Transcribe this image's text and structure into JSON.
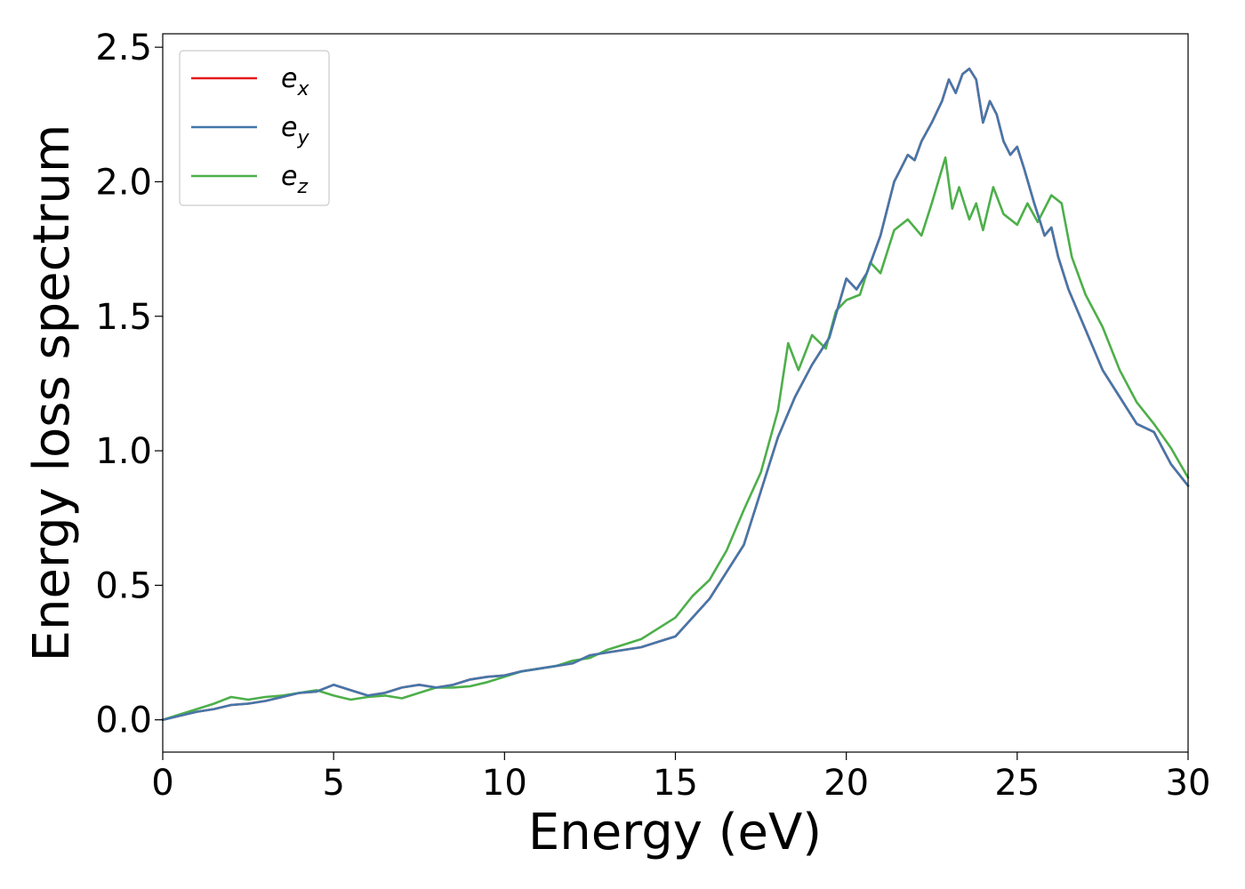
{
  "chart_data": {
    "type": "line",
    "title": "",
    "xlabel": "Energy (eV)",
    "ylabel": "Energy loss spectrum",
    "xlim": [
      0,
      30
    ],
    "ylim": [
      -0.12,
      2.55
    ],
    "x_ticks": [
      0,
      5,
      10,
      15,
      20,
      25,
      30
    ],
    "y_ticks": [
      0.0,
      0.5,
      1.0,
      1.5,
      2.0,
      2.5
    ],
    "x_tick_labels": [
      "0",
      "5",
      "10",
      "15",
      "20",
      "25",
      "30"
    ],
    "y_tick_labels": [
      "0.0",
      "0.5",
      "1.0",
      "1.5",
      "2.0",
      "2.5"
    ],
    "grid": false,
    "legend_position": "top-left",
    "series": [
      {
        "name": "e_x",
        "legend_base": "e",
        "legend_sub": "x",
        "color": "#e41a1c",
        "x": [
          0,
          0.5,
          1,
          1.5,
          2,
          2.5,
          3,
          3.5,
          4,
          4.5,
          5,
          5.5,
          6,
          6.5,
          7,
          7.5,
          8,
          8.5,
          9,
          9.5,
          10,
          10.5,
          11,
          11.5,
          12,
          12.5,
          13,
          13.5,
          14,
          14.5,
          15,
          15.5,
          16,
          16.5,
          17,
          17.5,
          18,
          18.5,
          19,
          19.5,
          20,
          20.3,
          20.6,
          21,
          21.4,
          21.6,
          21.8,
          22,
          22.2,
          22.5,
          22.8,
          23,
          23.2,
          23.4,
          23.6,
          23.8,
          24,
          24.2,
          24.4,
          24.6,
          24.8,
          25,
          25.2,
          25.5,
          25.8,
          26,
          26.2,
          26.5,
          27,
          27.5,
          28,
          28.5,
          29,
          29.5,
          30
        ],
        "y": [
          0.0,
          0.015,
          0.03,
          0.04,
          0.055,
          0.06,
          0.07,
          0.085,
          0.1,
          0.105,
          0.13,
          0.11,
          0.09,
          0.1,
          0.12,
          0.13,
          0.12,
          0.13,
          0.15,
          0.16,
          0.165,
          0.18,
          0.19,
          0.2,
          0.21,
          0.24,
          0.25,
          0.26,
          0.27,
          0.29,
          0.31,
          0.38,
          0.45,
          0.55,
          0.65,
          0.85,
          1.05,
          1.2,
          1.32,
          1.42,
          1.64,
          1.6,
          1.66,
          1.8,
          2.0,
          2.05,
          2.1,
          2.08,
          2.15,
          2.22,
          2.3,
          2.38,
          2.33,
          2.4,
          2.42,
          2.38,
          2.22,
          2.3,
          2.25,
          2.15,
          2.1,
          2.13,
          2.05,
          1.92,
          1.8,
          1.83,
          1.72,
          1.6,
          1.45,
          1.3,
          1.2,
          1.1,
          1.07,
          0.95,
          0.87
        ]
      },
      {
        "name": "e_y",
        "legend_base": "e",
        "legend_sub": "y",
        "color": "#4477aa",
        "x": [
          0,
          0.5,
          1,
          1.5,
          2,
          2.5,
          3,
          3.5,
          4,
          4.5,
          5,
          5.5,
          6,
          6.5,
          7,
          7.5,
          8,
          8.5,
          9,
          9.5,
          10,
          10.5,
          11,
          11.5,
          12,
          12.5,
          13,
          13.5,
          14,
          14.5,
          15,
          15.5,
          16,
          16.5,
          17,
          17.5,
          18,
          18.5,
          19,
          19.5,
          20,
          20.3,
          20.6,
          21,
          21.4,
          21.6,
          21.8,
          22,
          22.2,
          22.5,
          22.8,
          23,
          23.2,
          23.4,
          23.6,
          23.8,
          24,
          24.2,
          24.4,
          24.6,
          24.8,
          25,
          25.2,
          25.5,
          25.8,
          26,
          26.2,
          26.5,
          27,
          27.5,
          28,
          28.5,
          29,
          29.5,
          30
        ],
        "y": [
          0.0,
          0.015,
          0.03,
          0.04,
          0.055,
          0.06,
          0.07,
          0.085,
          0.1,
          0.105,
          0.13,
          0.11,
          0.09,
          0.1,
          0.12,
          0.13,
          0.12,
          0.13,
          0.15,
          0.16,
          0.165,
          0.18,
          0.19,
          0.2,
          0.21,
          0.24,
          0.25,
          0.26,
          0.27,
          0.29,
          0.31,
          0.38,
          0.45,
          0.55,
          0.65,
          0.85,
          1.05,
          1.2,
          1.32,
          1.42,
          1.64,
          1.6,
          1.66,
          1.8,
          2.0,
          2.05,
          2.1,
          2.08,
          2.15,
          2.22,
          2.3,
          2.38,
          2.33,
          2.4,
          2.42,
          2.38,
          2.22,
          2.3,
          2.25,
          2.15,
          2.1,
          2.13,
          2.05,
          1.92,
          1.8,
          1.83,
          1.72,
          1.6,
          1.45,
          1.3,
          1.2,
          1.1,
          1.07,
          0.95,
          0.87
        ]
      },
      {
        "name": "e_z",
        "legend_base": "e",
        "legend_sub": "z",
        "color": "#4daf4a",
        "x": [
          0,
          0.5,
          1,
          1.5,
          2,
          2.5,
          3,
          3.5,
          4,
          4.5,
          5,
          5.5,
          6,
          6.5,
          7,
          7.5,
          8,
          8.5,
          9,
          9.5,
          10,
          10.5,
          11,
          11.5,
          12,
          12.5,
          13,
          13.5,
          14,
          14.5,
          15,
          15.5,
          16,
          16.5,
          17,
          17.5,
          18,
          18.3,
          18.6,
          19,
          19.4,
          19.7,
          20,
          20.4,
          20.7,
          21,
          21.4,
          21.8,
          22.2,
          22.5,
          22.9,
          23.1,
          23.3,
          23.6,
          23.8,
          24,
          24.3,
          24.6,
          25,
          25.3,
          25.6,
          26,
          26.3,
          26.6,
          27,
          27.5,
          28,
          28.5,
          29,
          29.5,
          30
        ],
        "y": [
          0.0,
          0.02,
          0.04,
          0.06,
          0.085,
          0.075,
          0.085,
          0.09,
          0.1,
          0.11,
          0.09,
          0.075,
          0.085,
          0.09,
          0.08,
          0.1,
          0.12,
          0.12,
          0.125,
          0.14,
          0.16,
          0.18,
          0.19,
          0.2,
          0.22,
          0.23,
          0.26,
          0.28,
          0.3,
          0.34,
          0.38,
          0.46,
          0.52,
          0.63,
          0.78,
          0.92,
          1.15,
          1.4,
          1.3,
          1.43,
          1.38,
          1.52,
          1.56,
          1.58,
          1.7,
          1.66,
          1.82,
          1.86,
          1.8,
          1.92,
          2.09,
          1.9,
          1.98,
          1.86,
          1.92,
          1.82,
          1.98,
          1.88,
          1.84,
          1.92,
          1.85,
          1.95,
          1.92,
          1.72,
          1.58,
          1.46,
          1.3,
          1.18,
          1.1,
          1.01,
          0.9
        ]
      }
    ]
  }
}
